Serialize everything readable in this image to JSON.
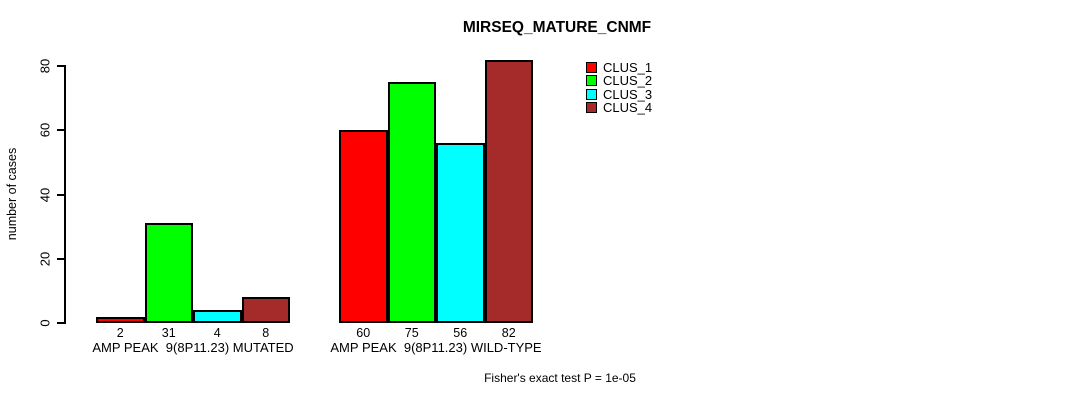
{
  "chart_data": {
    "type": "bar",
    "title": "MIRSEQ_MATURE_CNMF",
    "ylabel": "number of cases",
    "xlabel": "",
    "ylim": [
      0,
      80
    ],
    "yticks": [
      0,
      20,
      40,
      60,
      80
    ],
    "grid": false,
    "legend_position": "top-right-inside",
    "bar_border_color": "#000000",
    "background_color": "#ffffff",
    "categories": [
      "AMP PEAK  9(8P11.23) MUTATED",
      "AMP PEAK  9(8P11.23) WILD-TYPE"
    ],
    "series": [
      {
        "name": "CLUS_1",
        "color": "#FF0000",
        "values": [
          2,
          60
        ]
      },
      {
        "name": "CLUS_2",
        "color": "#00FF00",
        "values": [
          31,
          75
        ]
      },
      {
        "name": "CLUS_3",
        "color": "#00FFFF",
        "values": [
          4,
          56
        ]
      },
      {
        "name": "CLUS_4",
        "color": "#A52A2A",
        "values": [
          8,
          82
        ]
      }
    ],
    "bar_value_labels": [
      [
        2,
        31,
        4,
        8
      ],
      [
        60,
        75,
        56,
        82
      ]
    ],
    "annotation": "Fisher's exact test P = 1e-05"
  }
}
